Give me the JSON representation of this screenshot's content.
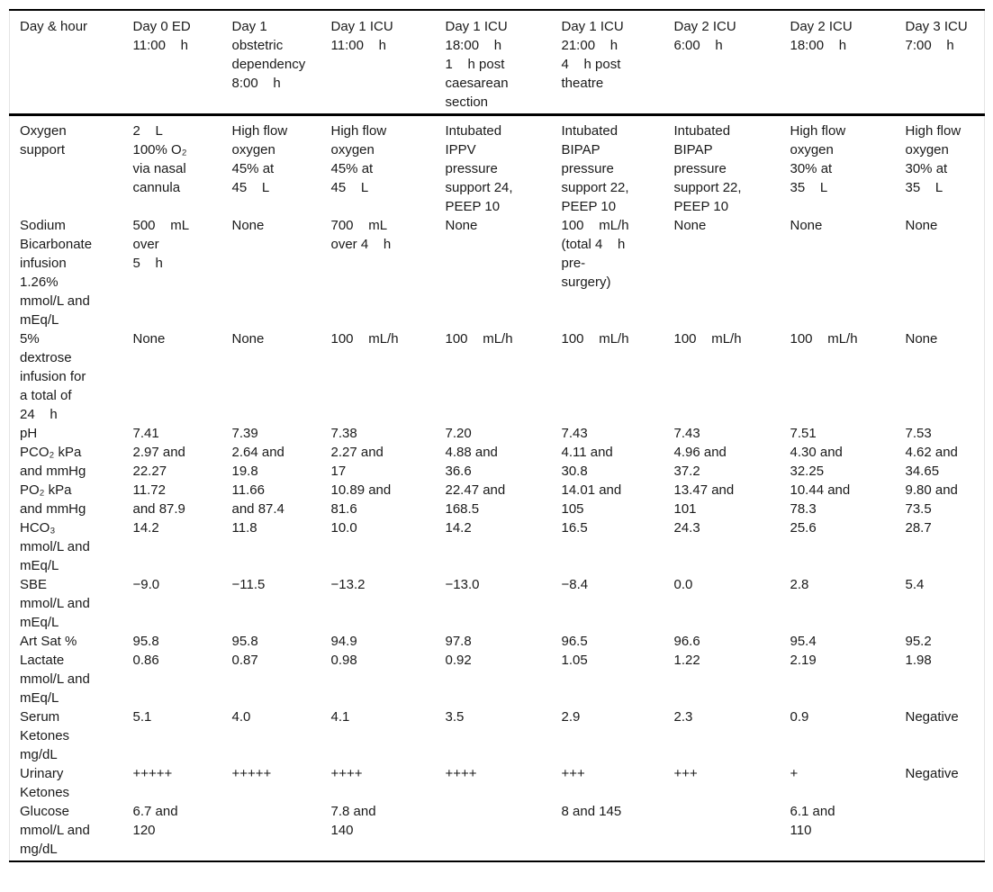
{
  "table": {
    "columns": [
      "Day & hour",
      "Day 0 ED\n11:00    h",
      "Day 1\nobstetric\ndependency\n8:00    h",
      "Day 1 ICU\n11:00    h",
      "Day 1 ICU\n18:00    h\n1    h post\ncaesarean\nsection",
      "Day 1 ICU\n21:00    h\n4    h post\ntheatre",
      "Day 2 ICU\n6:00    h",
      "Day 2 ICU\n18:00    h",
      "Day 3 ICU\n7:00    h"
    ],
    "rows": [
      {
        "label": "Oxygen\nsupport",
        "values": [
          "2    L\n100% O₂\nvia nasal\ncannula",
          "High flow\noxygen\n45% at\n45    L",
          "High flow\noxygen\n45% at\n45    L",
          "Intubated\nIPPV\npressure\nsupport 24,\nPEEP 10",
          "Intubated\nBIPAP\npressure\nsupport 22,\nPEEP 10",
          "Intubated\nBIPAP\npressure\nsupport 22,\nPEEP 10",
          "High flow\noxygen\n30% at\n35    L",
          "High flow\noxygen\n30% at\n35    L"
        ]
      },
      {
        "label": "Sodium\nBicarbonate\ninfusion\n1.26%\nmmol/L and\nmEq/L",
        "values": [
          "500    mL\nover\n5    h",
          "None",
          "700    mL\nover 4    h",
          "None",
          "100    mL/h\n(total 4    h\npre-\nsurgery)",
          "None",
          "None",
          "None"
        ]
      },
      {
        "label": "5%\ndextrose\ninfusion for\na total of\n24    h",
        "values": [
          "None",
          "None",
          "100    mL/h",
          "100    mL/h",
          "100    mL/h",
          "100    mL/h",
          "100    mL/h",
          "None"
        ]
      },
      {
        "label": "pH",
        "values": [
          "7.41",
          "7.39",
          "7.38",
          "7.20",
          "7.43",
          "7.43",
          "7.51",
          "7.53"
        ]
      },
      {
        "label": "PCO₂ kPa\nand mmHg",
        "values": [
          "2.97 and\n22.27",
          "2.64 and\n19.8",
          "2.27 and\n17",
          "4.88 and\n36.6",
          "4.11 and\n30.8",
          "4.96 and\n37.2",
          "4.30 and\n32.25",
          "4.62 and\n34.65"
        ]
      },
      {
        "label": "PO₂ kPa\nand mmHg",
        "values": [
          "11.72\nand 87.9",
          "11.66\nand 87.4",
          "10.89 and\n81.6",
          "22.47 and\n168.5",
          "14.01 and\n105",
          "13.47 and\n101",
          "10.44 and\n78.3",
          "9.80 and\n73.5"
        ]
      },
      {
        "label": "HCO₃\nmmol/L and\nmEq/L",
        "values": [
          "14.2",
          "11.8",
          "10.0",
          "14.2",
          "16.5",
          "24.3",
          "25.6",
          "28.7"
        ]
      },
      {
        "label": "SBE\nmmol/L and\nmEq/L",
        "values": [
          "−9.0",
          "−11.5",
          "−13.2",
          "−13.0",
          "−8.4",
          "0.0",
          "2.8",
          "5.4"
        ]
      },
      {
        "label": "Art Sat %",
        "values": [
          "95.8",
          "95.8",
          "94.9",
          "97.8",
          "96.5",
          "96.6",
          "95.4",
          "95.2"
        ]
      },
      {
        "label": "Lactate\nmmol/L and\nmEq/L",
        "values": [
          "0.86",
          "0.87",
          "0.98",
          "0.92",
          "1.05",
          "1.22",
          "2.19",
          "1.98"
        ]
      },
      {
        "label": "Serum\nKetones\nmg/dL",
        "values": [
          "5.1",
          "4.0",
          "4.1",
          "3.5",
          "2.9",
          "2.3",
          "0.9",
          "Negative"
        ]
      },
      {
        "label": "Urinary\nKetones",
        "values": [
          "+++++",
          "+++++",
          "++++",
          "++++",
          "+++",
          "+++",
          "+",
          "Negative"
        ]
      },
      {
        "label": "Glucose\nmmol/L and\nmg/dL",
        "values": [
          "6.7 and\n120",
          "",
          "7.8 and\n140",
          "",
          "8 and 145",
          "",
          "6.1 and\n110",
          ""
        ]
      }
    ]
  }
}
